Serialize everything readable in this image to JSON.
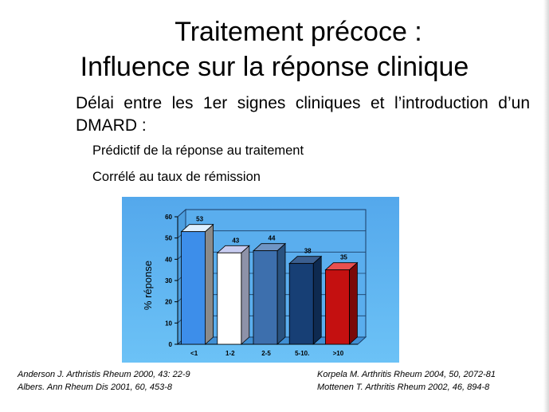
{
  "slide": {
    "title_line1": "Traitement précoce :",
    "title_line2": "Influence sur la réponse clinique",
    "body_line1": "Délai entre les 1er signes cliniques et l’introduction d’un",
    "body_line2": "DMARD :",
    "sub_item1": "Prédictif de la réponse au traitement",
    "sub_item2": "Corrélé au taux de rémission",
    "refs_left": [
      "Anderson J. Arthristis Rheum 2000, 43: 22-9",
      "Albers. Ann Rheum Dis 2001, 60, 453-8"
    ],
    "refs_right": [
      "Korpela M. Arthritis Rheum 2004, 50, 2072-81",
      "Mottenen T. Arthritis Rheum 2002, 46, 894-8"
    ]
  },
  "colors": {
    "chart_background": "#5db3f0",
    "bar_front": [
      "#3d8eea",
      "#ffffff",
      "#3d6fad",
      "#173f75",
      "#c41010"
    ],
    "bar_side": [
      "#8a8a8a",
      "#8e92a8",
      "#29527f",
      "#0e2a50",
      "#7a0909"
    ],
    "bar_top": [
      "#dff0ff",
      "#c8ccf0",
      "#6f95c4",
      "#3b5f90",
      "#e85050"
    ]
  },
  "chart_data": {
    "type": "bar",
    "style": "3d",
    "categories": [
      "<1",
      "1-2",
      "2-5",
      "5-10.",
      ">10"
    ],
    "values": [
      53,
      43,
      44,
      38,
      35
    ],
    "data_labels": [
      "53",
      "43",
      "44",
      "38",
      "35"
    ],
    "ylabel": "% réponse",
    "ylim": [
      0,
      60
    ],
    "yticks": [
      "0",
      "10",
      "20",
      "30",
      "40",
      "50",
      "60"
    ],
    "grid": true
  }
}
